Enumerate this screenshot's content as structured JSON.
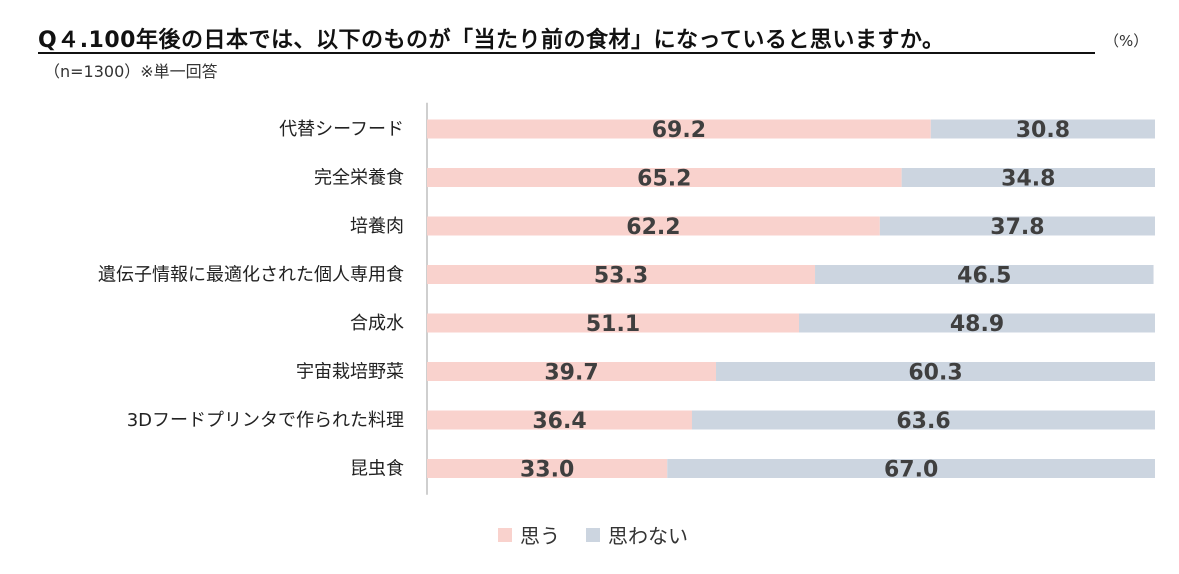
{
  "header": {
    "title": "Q４.100年後の日本では、以下のものが「当たり前の食材」になっていると思いますか。",
    "unit": "（%）",
    "subtitle": "（n=1300）※単一回答"
  },
  "colors": {
    "agree": "#f9d2cd",
    "disagree": "#ccd5e0",
    "axis": "#bfbfbf",
    "value_text": "#3f3f3f"
  },
  "chart_data": {
    "type": "bar",
    "orientation": "horizontal",
    "stacked": true,
    "categories": [
      "代替シーフード",
      "完全栄養食",
      "培養肉",
      "遺伝子情報に最適化された個人専用食",
      "合成水",
      "宇宙栽培野菜",
      "3Dフードプリンタで作られた料理",
      "昆虫食"
    ],
    "series": [
      {
        "name": "思う",
        "values": [
          69.2,
          65.2,
          62.2,
          53.3,
          51.1,
          39.7,
          36.4,
          33.0
        ]
      },
      {
        "name": "思わない",
        "values": [
          30.8,
          34.8,
          37.8,
          46.5,
          48.9,
          60.3,
          63.6,
          67.0
        ]
      }
    ],
    "value_labels": [
      [
        "69.2",
        "30.8"
      ],
      [
        "65.2",
        "34.8"
      ],
      [
        "62.2",
        "37.8"
      ],
      [
        "53.3",
        "46.5"
      ],
      [
        "51.1",
        "48.9"
      ],
      [
        "39.7",
        "60.3"
      ],
      [
        "36.4",
        "63.6"
      ],
      [
        "33.0",
        "67.0"
      ]
    ],
    "xlim": [
      0,
      100
    ],
    "grid": false,
    "legend_position": "bottom"
  }
}
